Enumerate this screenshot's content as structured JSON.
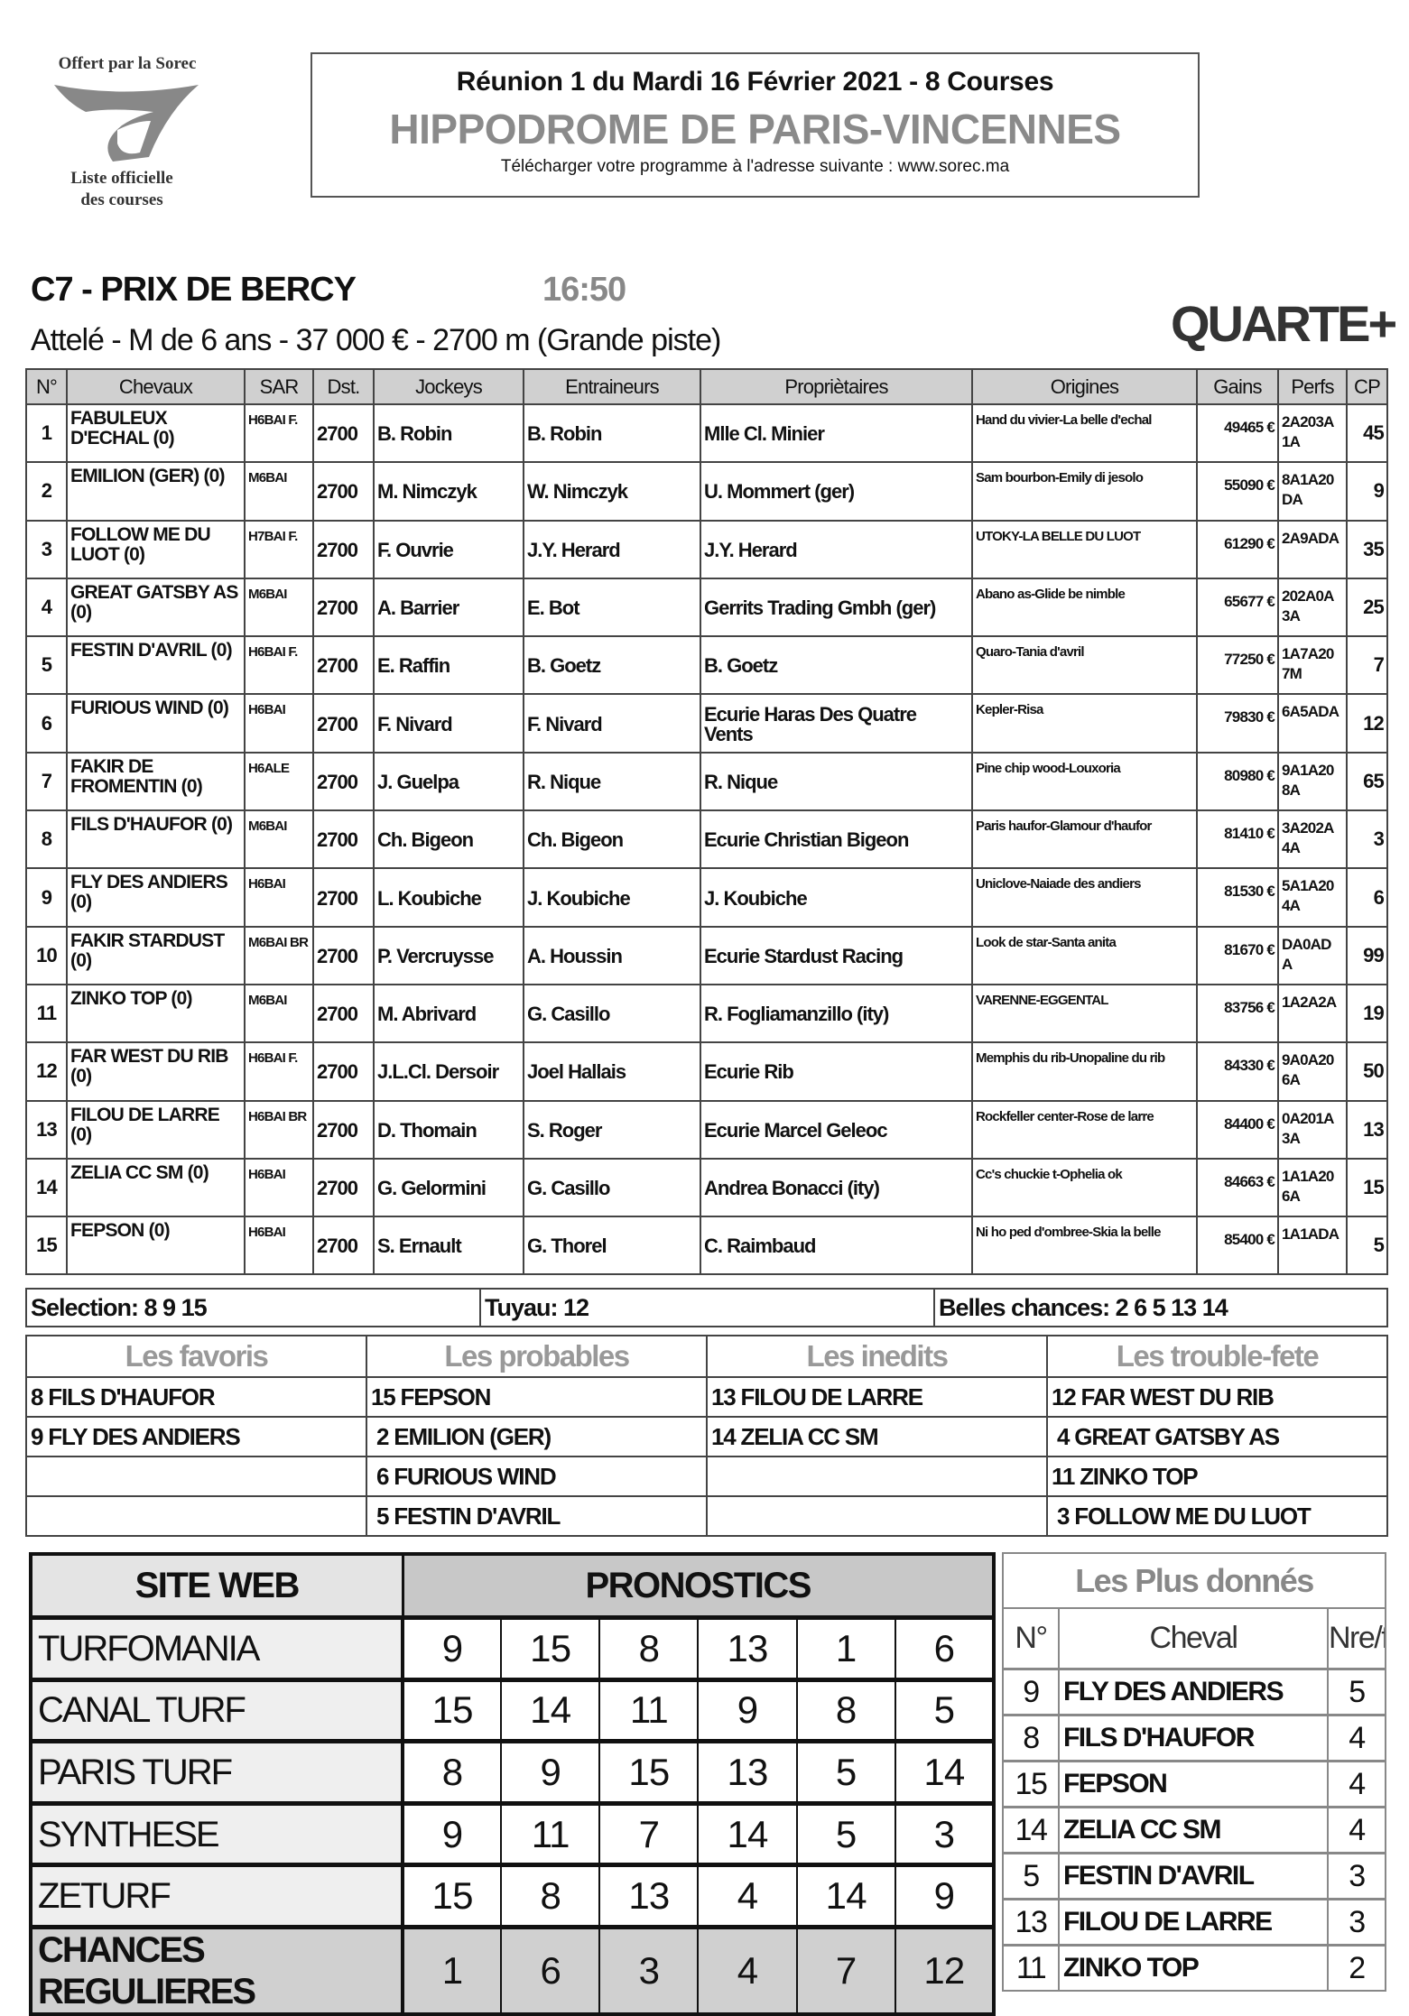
{
  "logo": {
    "top": "Offert par la Sorec",
    "bottom1": "Liste officielle",
    "bottom2": "des courses"
  },
  "header": {
    "line1": "Réunion 1 du Mardi 16 Février 2021 - 8 Courses",
    "line2": "HIPPODROME DE PARIS-VINCENNES",
    "line3": "Télécharger votre programme à l'adresse suivante : www.sorec.ma"
  },
  "race": {
    "title": "C7 -  PRIX DE BERCY",
    "time": "16:50",
    "subtitle": "Attelé - M de 6 ans - 37 000 € - 2700 m (Grande piste)",
    "bet": "QUARTE+"
  },
  "table": {
    "columns": [
      "N°",
      "Chevaux",
      "SAR",
      "Dst.",
      "Jockeys",
      "Entraineurs",
      "Propriètaires",
      "Origines",
      "Gains",
      "Perfs",
      "CP"
    ],
    "rows": [
      [
        "1",
        "FABULEUX D'ECHAL (0)",
        "H6BAI F.",
        "2700",
        "B. Robin",
        "B. Robin",
        "Mlle Cl. Minier",
        "Hand du vivier-La belle d'echal",
        "49465 €",
        "2A203A 1A",
        "45"
      ],
      [
        "2",
        "EMILION (GER) (0)",
        "M6BAI",
        "2700",
        "M. Nimczyk",
        "W. Nimczyk",
        "U. Mommert (ger)",
        "Sam bourbon-Emily di jesolo",
        "55090 €",
        "8A1A20 DA",
        "9"
      ],
      [
        "3",
        "FOLLOW ME DU LUOT (0)",
        "H7BAI F.",
        "2700",
        "F. Ouvrie",
        "J.Y. Herard",
        "J.Y. Herard",
        "UTOKY-LA BELLE DU LUOT",
        "61290 €",
        "2A9ADA",
        "35"
      ],
      [
        "4",
        "GREAT GATSBY AS (0)",
        "M6BAI",
        "2700",
        "A. Barrier",
        "E. Bot",
        "Gerrits Trading Gmbh (ger)",
        "Abano as-Glide be nimble",
        "65677 €",
        "202A0A 3A",
        "25"
      ],
      [
        "5",
        "FESTIN D'AVRIL (0)",
        "H6BAI F.",
        "2700",
        "E. Raffin",
        "B. Goetz",
        "B. Goetz",
        "Quaro-Tania d'avril",
        "77250 €",
        "1A7A20 7M",
        "7"
      ],
      [
        "6",
        "FURIOUS WIND (0)",
        "H6BAI",
        "2700",
        "F. Nivard",
        "F. Nivard",
        "Ecurie Haras Des Quatre Vents",
        "Kepler-Risa",
        "79830 €",
        "6A5ADA",
        "12"
      ],
      [
        "7",
        "FAKIR DE FROMENTIN (0)",
        "H6ALE",
        "2700",
        "J. Guelpa",
        "R. Nique",
        "R. Nique",
        "Pine chip wood-Louxoria",
        "80980 €",
        "9A1A20 8A",
        "65"
      ],
      [
        "8",
        "FILS D'HAUFOR (0)",
        "M6BAI",
        "2700",
        "Ch. Bigeon",
        "Ch. Bigeon",
        "Ecurie Christian Bigeon",
        "Paris haufor-Glamour d'haufor",
        "81410 €",
        "3A202A 4A",
        "3"
      ],
      [
        "9",
        "FLY DES ANDIERS (0)",
        "H6BAI",
        "2700",
        "L. Koubiche",
        "J. Koubiche",
        "J. Koubiche",
        "Uniclove-Naiade des andiers",
        "81530 €",
        "5A1A20 4A",
        "6"
      ],
      [
        "10",
        "FAKIR STARDUST (0)",
        "M6BAI BR",
        "2700",
        "P. Vercruysse",
        "A. Houssin",
        "Ecurie Stardust Racing",
        "Look de star-Santa anita",
        "81670 €",
        "DA0AD A",
        "99"
      ],
      [
        "11",
        "ZINKO TOP (0)",
        "M6BAI",
        "2700",
        "M. Abrivard",
        "G. Casillo",
        "R. Fogliamanzillo (ity)",
        "VARENNE-EGGENTAL",
        "83756 €",
        "1A2A2A",
        "19"
      ],
      [
        "12",
        "FAR WEST DU RIB (0)",
        "H6BAI F.",
        "2700",
        "J.L.Cl. Dersoir",
        "Joel Hallais",
        "Ecurie Rib",
        "Memphis du rib-Unopaline du rib",
        "84330 €",
        "9A0A20 6A",
        "50"
      ],
      [
        "13",
        "FILOU DE LARRE (0)",
        "H6BAI BR",
        "2700",
        "D. Thomain",
        "S. Roger",
        "Ecurie Marcel Geleoc",
        "Rockfeller center-Rose de larre",
        "84400 €",
        "0A201A 3A",
        "13"
      ],
      [
        "14",
        "ZELIA CC SM (0)",
        "H6BAI",
        "2700",
        "G. Gelormini",
        "G. Casillo",
        "Andrea Bonacci (ity)",
        "Cc's chuckie t-Ophelia ok",
        "84663 €",
        "1A1A20 6A",
        "15"
      ],
      [
        "15",
        "FEPSON (0)",
        "H6BAI",
        "2700",
        "S. Ernault",
        "G. Thorel",
        "C. Raimbaud",
        "Ni ho ped d'ombree-Skia la belle",
        "85400 €",
        "1A1ADA",
        "5"
      ]
    ]
  },
  "selection": {
    "selection": "Selection: 8 9 15",
    "tuyau": "Tuyau: 12",
    "belles": "Belles chances: 2 6 5 13 14"
  },
  "categories": {
    "headers": [
      "Les favoris",
      "Les probables",
      "Les inedits",
      "Les trouble-fete"
    ],
    "rows": [
      [
        "8 FILS D'HAUFOR",
        "15 FEPSON",
        "13 FILOU DE LARRE",
        "12 FAR WEST DU RIB"
      ],
      [
        "9 FLY DES ANDIERS",
        " 2 EMILION (GER)",
        "14 ZELIA CC SM",
        " 4 GREAT GATSBY AS"
      ],
      [
        "",
        " 6 FURIOUS WIND",
        "",
        "11 ZINKO TOP"
      ],
      [
        "",
        " 5 FESTIN D'AVRIL",
        "",
        " 3 FOLLOW ME DU LUOT"
      ]
    ]
  },
  "pronostics": {
    "site_header": "SITE WEB",
    "pron_header": "PRONOSTICS",
    "rows": [
      {
        "site": "TURFOMANIA",
        "values": [
          "9",
          "15",
          "8",
          "13",
          "1",
          "6"
        ]
      },
      {
        "site": "CANAL TURF",
        "values": [
          "15",
          "14",
          "11",
          "9",
          "8",
          "5"
        ]
      },
      {
        "site": "PARIS TURF",
        "values": [
          "8",
          "9",
          "15",
          "13",
          "5",
          "14"
        ]
      },
      {
        "site": "SYNTHESE",
        "values": [
          "9",
          "11",
          "7",
          "14",
          "5",
          "3"
        ]
      },
      {
        "site": "ZETURF",
        "values": [
          "15",
          "8",
          "13",
          "4",
          "14",
          "9"
        ]
      },
      {
        "site": "CHANCES REGULIERES",
        "values": [
          "1",
          "6",
          "3",
          "4",
          "7",
          "12"
        ]
      }
    ]
  },
  "plus_donnes": {
    "title": "Les Plus donnés",
    "headers": [
      "N°",
      "Cheval",
      "Nre/f"
    ],
    "rows": [
      [
        "9",
        "FLY DES ANDIERS",
        "5"
      ],
      [
        "8",
        "FILS D'HAUFOR",
        "4"
      ],
      [
        "15",
        "FEPSON",
        "4"
      ],
      [
        "14",
        "ZELIA CC SM",
        "4"
      ],
      [
        "5",
        "FESTIN D'AVRIL",
        "3"
      ],
      [
        "13",
        "FILOU DE LARRE",
        "3"
      ],
      [
        "11",
        "ZINKO TOP",
        "2"
      ]
    ]
  }
}
